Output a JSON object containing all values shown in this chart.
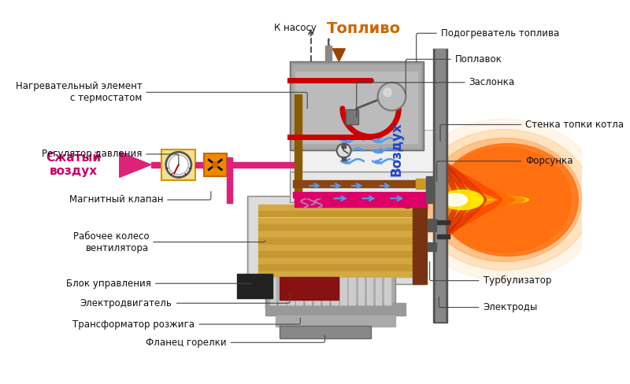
{
  "bg_color": "#ffffff",
  "labels": {
    "toplivo": "Топливо",
    "k_nasu": "К насосу",
    "podogrev": "Подогреватель топлива",
    "poplavok": "Поплавок",
    "zaslonka": "Заслонка",
    "nagrev_elem": "Нагревательный элемент\nс термостатом",
    "reg_davl": "Регулятор давления",
    "szhatyy": "Сжатый\nвоздух",
    "magn_klapan": "Магнитный клапан",
    "rab_koleso": "Рабочее колесо\nвентилятора",
    "blok_upr": "Блок управления",
    "electrodvig": "Электродвигатель",
    "transf": "Трансформатор розжига",
    "flanec": "Фланец горелки",
    "stenka": "Стенка топки котла",
    "forsunka": "Форсунка",
    "vozduh": "Воздух",
    "turbuliz": "Турбулизатор",
    "elektrody": "Электроды"
  }
}
